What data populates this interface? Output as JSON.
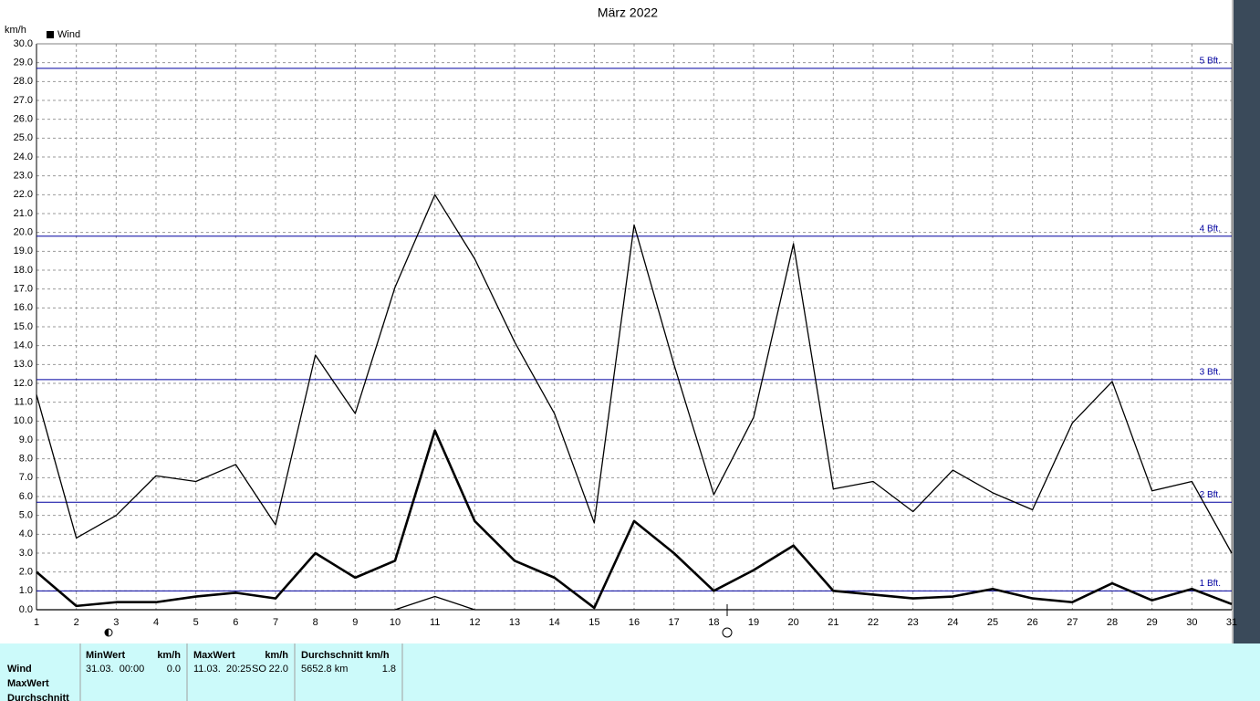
{
  "chart_data": {
    "type": "line",
    "title": "März 2022",
    "y_label": "km/h",
    "legend": "Wind",
    "x": [
      1,
      2,
      3,
      4,
      5,
      6,
      7,
      8,
      9,
      10,
      11,
      12,
      13,
      14,
      15,
      16,
      17,
      18,
      19,
      20,
      21,
      22,
      23,
      24,
      25,
      26,
      27,
      28,
      29,
      30,
      31
    ],
    "xlim": [
      1,
      31
    ],
    "ylim": [
      0,
      30
    ],
    "yticks": [
      {
        "value": 0,
        "label": "0.0"
      },
      {
        "value": 1,
        "label": "1.0"
      },
      {
        "value": 2,
        "label": "2.0"
      },
      {
        "value": 3,
        "label": "3.0"
      },
      {
        "value": 4,
        "label": "4.0"
      },
      {
        "value": 5,
        "label": "5.0"
      },
      {
        "value": 6,
        "label": "6.0"
      },
      {
        "value": 7,
        "label": "7.0"
      },
      {
        "value": 8,
        "label": "8.0"
      },
      {
        "value": 9,
        "label": "9.0"
      },
      {
        "value": 10,
        "label": "10.0"
      },
      {
        "value": 11,
        "label": "11.0"
      },
      {
        "value": 12,
        "label": "12.0"
      },
      {
        "value": 13,
        "label": "13.0"
      },
      {
        "value": 14,
        "label": "14.0"
      },
      {
        "value": 15,
        "label": "15.0"
      },
      {
        "value": 16,
        "label": "16.0"
      },
      {
        "value": 17,
        "label": "17.0"
      },
      {
        "value": 18,
        "label": "18.0"
      },
      {
        "value": 19,
        "label": "19.0"
      },
      {
        "value": 20,
        "label": "20.0"
      },
      {
        "value": 21,
        "label": "21.0"
      },
      {
        "value": 22,
        "label": "22.0"
      },
      {
        "value": 23,
        "label": "23.0"
      },
      {
        "value": 24,
        "label": "24.0"
      },
      {
        "value": 25,
        "label": "25.0"
      },
      {
        "value": 26,
        "label": "26.0"
      },
      {
        "value": 27,
        "label": "27.0"
      },
      {
        "value": 28,
        "label": "28.0"
      },
      {
        "value": 29,
        "label": "29.0"
      },
      {
        "value": 30,
        "label": "30.0"
      }
    ],
    "grid": true,
    "series": [
      {
        "color": "#000000",
        "width": 1.3,
        "values": [
          11.4,
          3.8,
          5.0,
          7.1,
          6.8,
          7.7,
          4.5,
          13.5,
          10.4,
          17.1,
          22.0,
          18.6,
          14.2,
          10.4,
          4.6,
          20.4,
          13.0,
          6.1,
          10.2,
          19.4,
          6.4,
          6.8,
          5.2,
          7.4,
          6.2,
          5.3,
          9.9,
          12.1,
          6.3,
          6.8,
          3.0
        ]
      },
      {
        "color": "#000000",
        "width": 2.6,
        "values": [
          2.0,
          0.2,
          0.4,
          0.4,
          0.7,
          0.9,
          0.6,
          3.0,
          1.7,
          2.6,
          9.5,
          4.7,
          2.6,
          1.7,
          0.1,
          4.7,
          3.0,
          1.0,
          2.1,
          3.4,
          1.0,
          0.8,
          0.6,
          0.7,
          1.1,
          0.6,
          0.4,
          1.4,
          0.5,
          1.1,
          0.3
        ]
      },
      {
        "color": "#000000",
        "width": 1.3,
        "values": [
          0,
          0,
          0,
          0,
          0,
          0,
          0,
          0,
          0,
          0,
          0.7,
          0,
          0,
          0,
          0,
          0,
          0,
          0,
          0,
          0,
          0,
          0,
          0,
          0,
          0,
          0,
          0,
          0,
          0,
          0,
          0
        ]
      }
    ],
    "reference_lines": [
      {
        "value": 1.0,
        "label": "1 Bft."
      },
      {
        "value": 5.7,
        "label": "2 Bft."
      },
      {
        "value": 12.2,
        "label": "3 Bft."
      },
      {
        "value": 19.8,
        "label": "4 Bft."
      },
      {
        "value": 28.7,
        "label": "5 Bft."
      }
    ],
    "reference_color": "#0000a0"
  },
  "table": {
    "row_labels": [
      "Wind",
      "MaxWert",
      "Durchschnitt"
    ],
    "columns": [
      {
        "header": "MinWert",
        "unit": "km/h",
        "cells": [
          "31.03.  00:00",
          "0.0"
        ]
      },
      {
        "header": "MaxWert",
        "unit": "km/h",
        "cells": [
          "11.03.  20:25",
          "SO",
          "22.0"
        ]
      },
      {
        "header": "Durchschnitt km/h",
        "cells": [
          "5652.8 km",
          "1.8"
        ]
      }
    ]
  }
}
